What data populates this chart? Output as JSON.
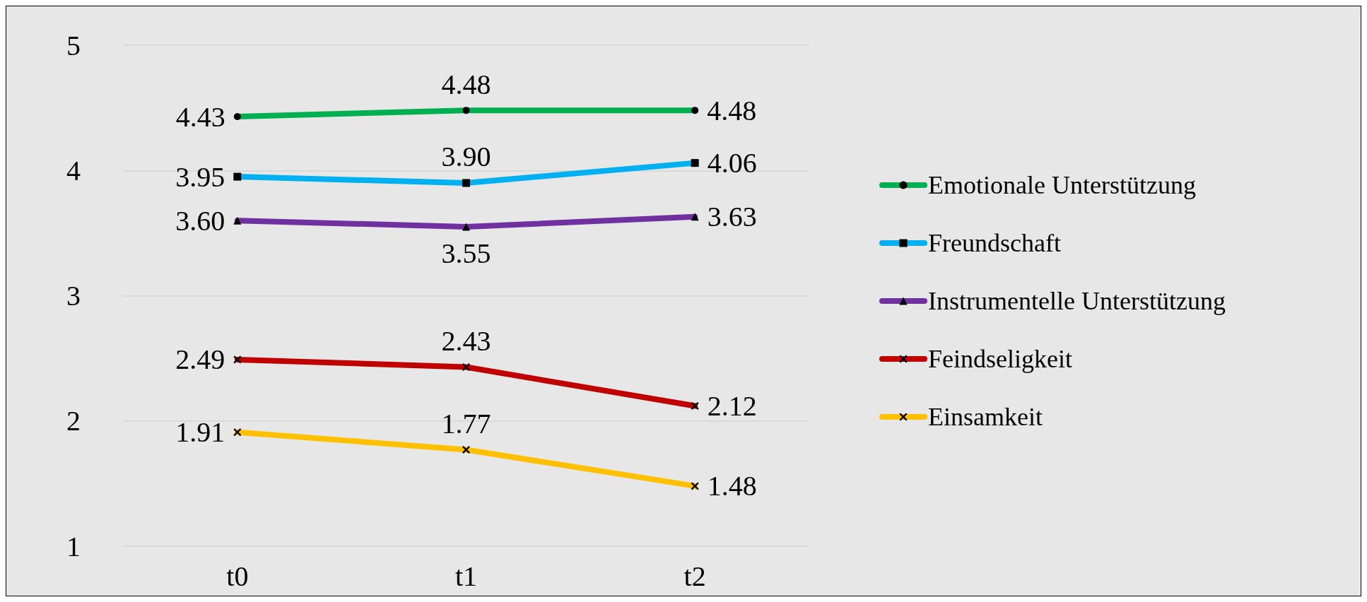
{
  "chart_data": {
    "type": "line",
    "categories": [
      "t0",
      "t1",
      "t2"
    ],
    "series": [
      {
        "name": "Emotionale Unterstützung",
        "color": "#00b050",
        "marker": "circle",
        "values": [
          4.43,
          4.48,
          4.48
        ],
        "value_labels": [
          "4.43",
          "4.48",
          "4.48"
        ]
      },
      {
        "name": "Freundschaft",
        "color": "#00b0f0",
        "marker": "square",
        "values": [
          3.95,
          3.9,
          4.06
        ],
        "value_labels": [
          "3.95",
          "3.90",
          "4.06"
        ]
      },
      {
        "name": "Instrumentelle Unterstützung",
        "color": "#7030a0",
        "marker": "triangle",
        "values": [
          3.6,
          3.55,
          3.63
        ],
        "value_labels": [
          "3.60",
          "3.55",
          "3.63"
        ]
      },
      {
        "name": "Feindseligkeit",
        "color": "#c00000",
        "marker": "cross",
        "values": [
          2.49,
          2.43,
          2.12
        ],
        "value_labels": [
          "2.49",
          "2.43",
          "2.12"
        ]
      },
      {
        "name": "Einsamkeit",
        "color": "#ffc000",
        "marker": "cross",
        "values": [
          1.91,
          1.77,
          1.48
        ],
        "value_labels": [
          "1.91",
          "1.77",
          "1.48"
        ]
      }
    ],
    "ylim": [
      1,
      5
    ],
    "yticks": [
      1,
      2,
      3,
      4,
      5
    ],
    "grid": "y",
    "legend": "right",
    "line_style": "solid"
  }
}
